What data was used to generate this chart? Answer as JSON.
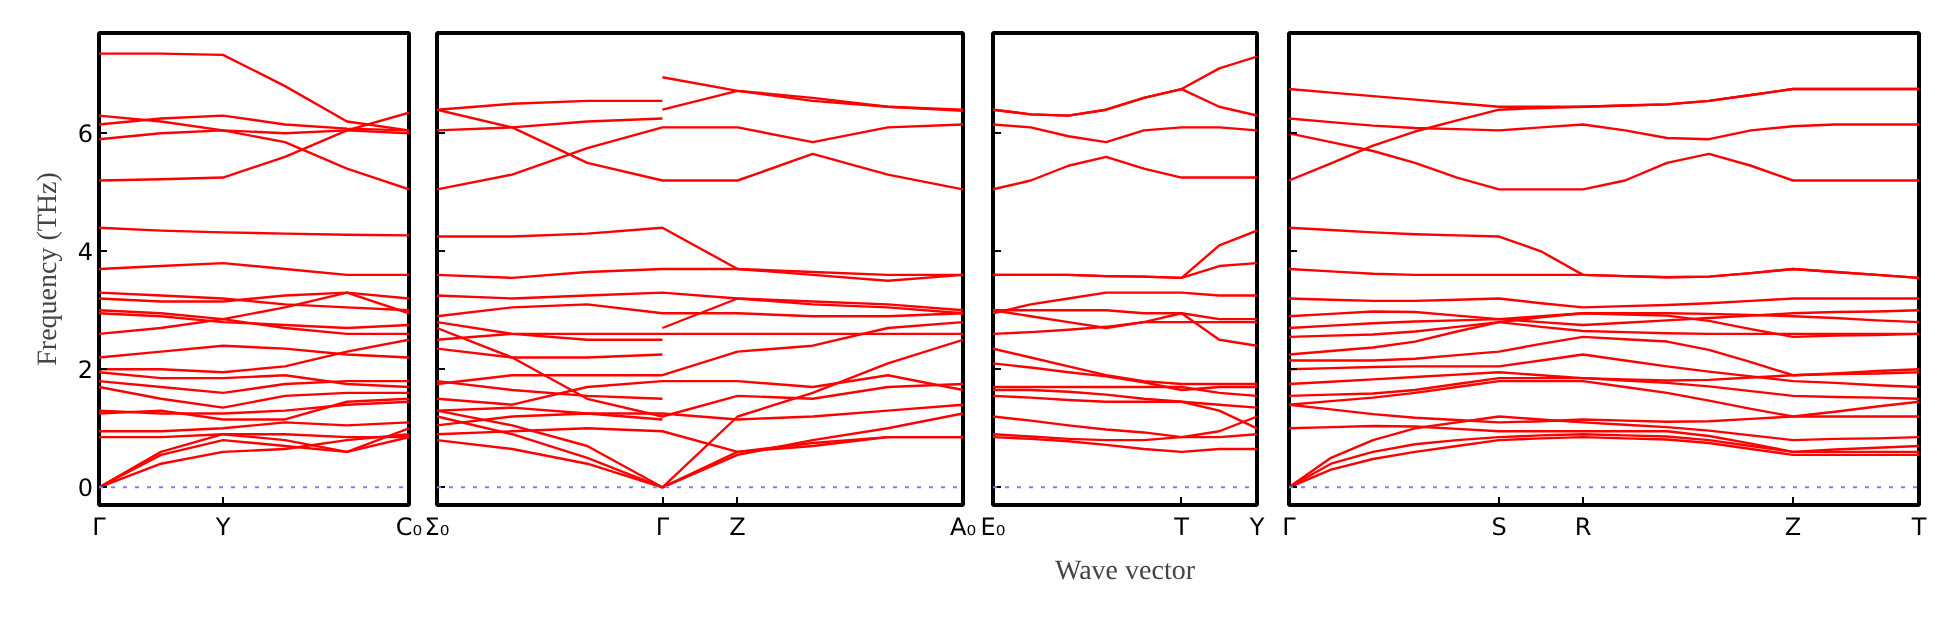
{
  "chart_data": [
    {
      "type": "line",
      "ylabel": "Frequency (THz)",
      "ylim": [
        -0.3,
        7.7
      ],
      "yticks": [
        0,
        2,
        4,
        6
      ],
      "categories": [
        "Γ",
        null,
        "Y",
        null,
        null,
        "C₀"
      ],
      "ref_lines": [
        {
          "axis": "y",
          "value": 0,
          "color": "#7f7fff",
          "line_style": "dotted"
        }
      ],
      "series": [
        {
          "color": "#ff0000",
          "values": [
            7.35,
            7.35,
            7.33,
            6.8,
            6.2,
            6.05
          ]
        },
        {
          "color": "#ff0000",
          "values": [
            6.3,
            6.2,
            6.05,
            5.85,
            5.4,
            5.05
          ]
        },
        {
          "color": "#ff0000",
          "values": [
            6.15,
            6.25,
            6.3,
            6.15,
            6.08,
            6.05
          ]
        },
        {
          "color": "#ff0000",
          "values": [
            5.9,
            6.0,
            6.05,
            6.0,
            6.05,
            6.0
          ]
        },
        {
          "color": "#ff0000",
          "values": [
            5.2,
            5.22,
            5.25,
            5.6,
            6.05,
            6.35
          ]
        },
        {
          "color": "#ff0000",
          "values": [
            4.4,
            4.35,
            4.32,
            4.3,
            4.28,
            4.27
          ]
        },
        {
          "color": "#ff0000",
          "values": [
            3.7,
            3.75,
            3.8,
            3.7,
            3.6,
            3.6
          ]
        },
        {
          "color": "#ff0000",
          "values": [
            3.3,
            3.25,
            3.2,
            3.1,
            3.05,
            3.0
          ]
        },
        {
          "color": "#ff0000",
          "values": [
            3.2,
            3.15,
            3.15,
            3.25,
            3.3,
            3.2
          ]
        },
        {
          "color": "#ff0000",
          "values": [
            3.0,
            2.95,
            2.85,
            3.05,
            3.3,
            2.95
          ]
        },
        {
          "color": "#ff0000",
          "values": [
            2.95,
            2.9,
            2.8,
            2.75,
            2.7,
            2.75
          ]
        },
        {
          "color": "#ff0000",
          "values": [
            2.6,
            2.7,
            2.85,
            2.7,
            2.6,
            2.6
          ]
        },
        {
          "color": "#ff0000",
          "values": [
            2.2,
            2.3,
            2.4,
            2.35,
            2.25,
            2.2
          ]
        },
        {
          "color": "#ff0000",
          "values": [
            2.0,
            2.0,
            1.95,
            2.05,
            2.3,
            2.5
          ]
        },
        {
          "color": "#ff0000",
          "values": [
            1.95,
            1.85,
            1.85,
            1.9,
            1.75,
            1.7
          ]
        },
        {
          "color": "#ff0000",
          "values": [
            1.8,
            1.7,
            1.6,
            1.75,
            1.8,
            1.8
          ]
        },
        {
          "color": "#ff0000",
          "values": [
            1.7,
            1.5,
            1.35,
            1.55,
            1.6,
            1.6
          ]
        },
        {
          "color": "#ff0000",
          "values": [
            1.3,
            1.25,
            1.25,
            1.3,
            1.4,
            1.45
          ]
        },
        {
          "color": "#ff0000",
          "values": [
            1.25,
            1.3,
            1.15,
            1.15,
            1.45,
            1.5
          ]
        },
        {
          "color": "#ff0000",
          "values": [
            0.95,
            0.95,
            1.0,
            1.1,
            1.05,
            1.1
          ]
        },
        {
          "color": "#ff0000",
          "values": [
            0.85,
            0.85,
            0.9,
            0.9,
            0.85,
            0.85
          ]
        },
        {
          "color": "#ff0000",
          "values": [
            0,
            0.6,
            0.9,
            0.8,
            0.6,
            0.85
          ]
        },
        {
          "color": "#ff0000",
          "values": [
            0,
            0.55,
            0.8,
            0.7,
            0.6,
            1.0
          ]
        },
        {
          "color": "#ff0000",
          "values": [
            0,
            0.4,
            0.6,
            0.65,
            0.8,
            0.9
          ]
        }
      ]
    },
    {
      "type": "line",
      "tick_labels": "x",
      "ylim": [
        -0.3,
        7.7
      ],
      "yticks": [
        0,
        2,
        4,
        6
      ],
      "categories": [
        "Σ₀",
        null,
        null,
        "Γ",
        "Z",
        null,
        null,
        "A₀"
      ],
      "ref_lines": [
        {
          "axis": "y",
          "value": 0,
          "color": "#7f7fff",
          "line_style": "dotted"
        }
      ],
      "series": [
        {
          "color": "#ff0000",
          "values": [
            6.4,
            6.5,
            6.55,
            6.55,
            null,
            null,
            null,
            null
          ]
        },
        {
          "color": "#ff0000",
          "values": [
            6.05,
            6.1,
            6.2,
            6.25,
            null,
            null,
            null,
            null
          ]
        },
        {
          "color": "#ff0000",
          "values": [
            6.4,
            6.1,
            5.5,
            5.2,
            5.2,
            5.65,
            5.3,
            5.05
          ]
        },
        {
          "color": "#ff0000",
          "values": [
            5.05,
            5.3,
            5.75,
            6.1,
            6.1,
            5.85,
            6.1,
            6.15
          ]
        },
        {
          "color": "#ff0000",
          "values": [
            null,
            null,
            null,
            6.95,
            6.72,
            6.6,
            6.45,
            6.38
          ]
        },
        {
          "color": "#ff0000",
          "values": [
            null,
            null,
            null,
            6.4,
            6.72,
            6.55,
            6.45,
            6.4
          ]
        },
        {
          "color": "#ff0000",
          "values": [
            4.25,
            4.25,
            4.3,
            4.4,
            3.7,
            3.6,
            3.5,
            3.6
          ]
        },
        {
          "color": "#ff0000",
          "values": [
            3.6,
            3.55,
            3.65,
            3.7,
            3.7,
            3.65,
            3.6,
            3.6
          ]
        },
        {
          "color": "#ff0000",
          "values": [
            3.25,
            3.2,
            3.25,
            3.3,
            3.2,
            3.15,
            3.1,
            3.0
          ]
        },
        {
          "color": "#ff0000",
          "values": [
            2.9,
            3.05,
            3.1,
            2.95,
            2.95,
            2.9,
            2.9,
            2.95
          ]
        },
        {
          "color": "#ff0000",
          "values": [
            2.8,
            2.6,
            2.5,
            2.5,
            null,
            null,
            null,
            null
          ]
        },
        {
          "color": "#ff0000",
          "values": [
            null,
            null,
            null,
            2.7,
            3.2,
            3.1,
            3.05,
            2.95
          ]
        },
        {
          "color": "#ff0000",
          "values": [
            2.5,
            2.6,
            2.6,
            2.6,
            2.6,
            2.6,
            2.6,
            2.6
          ]
        },
        {
          "color": "#ff0000",
          "values": [
            2.35,
            2.2,
            2.2,
            2.25,
            null,
            null,
            null,
            null
          ]
        },
        {
          "color": "#ff0000",
          "values": [
            2.7,
            2.2,
            1.5,
            1.2,
            1.55,
            1.5,
            1.7,
            1.75
          ]
        },
        {
          "color": "#ff0000",
          "values": [
            1.75,
            1.9,
            1.9,
            1.9,
            2.3,
            2.4,
            2.7,
            2.8
          ]
        },
        {
          "color": "#ff0000",
          "values": [
            1.8,
            1.65,
            1.55,
            1.5,
            null,
            null,
            null,
            null
          ]
        },
        {
          "color": "#ff0000",
          "values": [
            1.5,
            1.4,
            1.7,
            1.8,
            1.8,
            1.7,
            1.9,
            1.65
          ]
        },
        {
          "color": "#ff0000",
          "values": [
            1.3,
            1.35,
            1.25,
            1.25,
            1.15,
            1.2,
            1.3,
            1.4
          ]
        },
        {
          "color": "#ff0000",
          "values": [
            1.05,
            1.2,
            1.25,
            1.15,
            null,
            null,
            null,
            null
          ]
        },
        {
          "color": "#ff0000",
          "values": [
            0.9,
            0.95,
            1.0,
            0.95,
            0.6,
            0.7,
            0.85,
            0.85
          ]
        },
        {
          "color": "#ff0000",
          "values": [
            1.3,
            1.05,
            0.7,
            0,
            1.2,
            1.6,
            2.1,
            2.5
          ]
        },
        {
          "color": "#ff0000",
          "values": [
            1.2,
            0.9,
            0.5,
            0,
            0.55,
            0.8,
            1.0,
            1.25
          ]
        },
        {
          "color": "#ff0000",
          "values": [
            0.8,
            0.65,
            0.4,
            0,
            0.6,
            0.75,
            0.85,
            0.85
          ]
        }
      ]
    },
    {
      "type": "line",
      "tick_labels": "x",
      "xlabel": "Wave vector",
      "ylim": [
        -0.3,
        7.7
      ],
      "yticks": [
        0,
        2,
        4,
        6
      ],
      "categories": [
        "E₀",
        null,
        null,
        null,
        null,
        "T",
        null,
        "Y"
      ],
      "ref_lines": [
        {
          "axis": "y",
          "value": 0,
          "color": "#7f7fff",
          "line_style": "dotted"
        }
      ],
      "series": [
        {
          "color": "#ff0000",
          "values": [
            6.4,
            6.32,
            6.3,
            6.4,
            6.6,
            6.75,
            7.1,
            7.3
          ]
        },
        {
          "color": "#ff0000",
          "values": [
            6.4,
            6.32,
            6.3,
            6.4,
            6.6,
            6.75,
            6.45,
            6.3
          ]
        },
        {
          "color": "#ff0000",
          "values": [
            6.15,
            6.1,
            5.95,
            5.85,
            6.05,
            6.1,
            6.1,
            6.05
          ]
        },
        {
          "color": "#ff0000",
          "values": [
            5.05,
            5.2,
            5.45,
            5.6,
            5.4,
            5.25,
            5.25,
            5.25
          ]
        },
        {
          "color": "#ff0000",
          "values": [
            3.6,
            3.6,
            3.6,
            3.58,
            3.57,
            3.55,
            4.1,
            4.35
          ]
        },
        {
          "color": "#ff0000",
          "values": [
            3.6,
            3.6,
            3.6,
            3.58,
            3.57,
            3.55,
            3.75,
            3.8
          ]
        },
        {
          "color": "#ff0000",
          "values": [
            2.95,
            3.1,
            3.2,
            3.3,
            3.3,
            3.3,
            3.25,
            3.25
          ]
        },
        {
          "color": "#ff0000",
          "values": [
            3.0,
            3.0,
            3.0,
            3.0,
            2.95,
            2.95,
            2.85,
            2.85
          ]
        },
        {
          "color": "#ff0000",
          "values": [
            3.0,
            2.9,
            2.8,
            2.7,
            2.8,
            2.95,
            2.5,
            2.4
          ]
        },
        {
          "color": "#ff0000",
          "values": [
            2.6,
            2.63,
            2.67,
            2.72,
            2.8,
            2.8,
            2.8,
            2.8
          ]
        },
        {
          "color": "#ff0000",
          "values": [
            2.35,
            2.2,
            2.05,
            1.9,
            1.8,
            1.75,
            1.75,
            1.75
          ]
        },
        {
          "color": "#ff0000",
          "values": [
            2.1,
            2.03,
            1.95,
            1.88,
            1.78,
            1.65,
            1.7,
            1.7
          ]
        },
        {
          "color": "#ff0000",
          "values": [
            1.7,
            1.7,
            1.7,
            1.7,
            1.7,
            1.7,
            1.6,
            1.55
          ]
        },
        {
          "color": "#ff0000",
          "values": [
            1.65,
            1.65,
            1.62,
            1.57,
            1.5,
            1.45,
            1.4,
            1.35
          ]
        },
        {
          "color": "#ff0000",
          "values": [
            1.55,
            1.52,
            1.48,
            1.45,
            1.45,
            1.45,
            1.3,
            1.0
          ]
        },
        {
          "color": "#ff0000",
          "values": [
            1.2,
            1.13,
            1.05,
            0.98,
            0.93,
            0.85,
            0.95,
            1.2
          ]
        },
        {
          "color": "#ff0000",
          "values": [
            0.9,
            0.86,
            0.82,
            0.8,
            0.8,
            0.85,
            0.85,
            0.9
          ]
        },
        {
          "color": "#ff0000",
          "values": [
            0.85,
            0.82,
            0.78,
            0.72,
            0.65,
            0.6,
            0.65,
            0.65
          ]
        }
      ]
    },
    {
      "type": "line",
      "tick_labels": "x",
      "ylim": [
        -0.3,
        7.7
      ],
      "yticks": [
        0,
        2,
        4,
        6
      ],
      "categories": [
        "Γ",
        null,
        null,
        null,
        null,
        "S",
        null,
        "R",
        null,
        null,
        null,
        null,
        "Z",
        null,
        null,
        "T"
      ],
      "ref_lines": [
        {
          "axis": "y",
          "value": 0,
          "color": "#7f7fff",
          "line_style": "dotted"
        }
      ],
      "series": [
        {
          "color": "#ff0000",
          "values": [
            6.75,
            6.69,
            6.63,
            6.57,
            6.51,
            6.45,
            6.45,
            6.45,
            6.47,
            6.49,
            6.55,
            6.65,
            6.75,
            6.75,
            6.75,
            6.75
          ]
        },
        {
          "color": "#ff0000",
          "values": [
            5.2,
            5.49,
            5.79,
            6.03,
            6.22,
            6.4,
            6.43,
            6.45,
            6.47,
            6.49,
            6.55,
            6.65,
            6.75,
            6.75,
            6.75,
            6.75
          ]
        },
        {
          "color": "#ff0000",
          "values": [
            6.25,
            6.19,
            6.13,
            6.09,
            6.07,
            6.05,
            6.1,
            6.15,
            6.05,
            5.92,
            5.9,
            6.05,
            6.12,
            6.15,
            6.15,
            6.15
          ]
        },
        {
          "color": "#ff0000",
          "values": [
            6.0,
            5.85,
            5.7,
            5.5,
            5.25,
            5.05,
            5.05,
            5.05,
            5.2,
            5.5,
            5.65,
            5.45,
            5.2,
            5.2,
            5.2,
            5.2
          ]
        },
        {
          "color": "#ff0000",
          "values": [
            4.4,
            4.36,
            4.32,
            4.29,
            4.27,
            4.25,
            4.0,
            3.6,
            3.58,
            3.56,
            3.57,
            3.63,
            3.7,
            3.65,
            3.6,
            3.55
          ]
        },
        {
          "color": "#ff0000",
          "values": [
            3.7,
            3.66,
            3.62,
            3.6,
            3.6,
            3.6,
            3.6,
            3.6,
            3.58,
            3.56,
            3.57,
            3.63,
            3.7,
            3.65,
            3.6,
            3.55
          ]
        },
        {
          "color": "#ff0000",
          "values": [
            3.2,
            3.18,
            3.16,
            3.16,
            3.18,
            3.2,
            3.12,
            3.05,
            3.07,
            3.09,
            3.12,
            3.16,
            3.2,
            3.2,
            3.2,
            3.2
          ]
        },
        {
          "color": "#ff0000",
          "values": [
            2.9,
            2.94,
            2.98,
            2.97,
            2.91,
            2.85,
            2.9,
            2.95,
            2.95,
            2.95,
            2.94,
            2.92,
            2.9,
            2.87,
            2.83,
            2.8
          ]
        },
        {
          "color": "#ff0000",
          "values": [
            2.7,
            2.74,
            2.78,
            2.81,
            2.83,
            2.85,
            2.8,
            2.75,
            2.79,
            2.83,
            2.87,
            2.91,
            2.95,
            2.97,
            2.98,
            3.0
          ]
        },
        {
          "color": "#ff0000",
          "values": [
            2.55,
            2.57,
            2.59,
            2.64,
            2.72,
            2.8,
            2.72,
            2.65,
            2.63,
            2.61,
            2.6,
            2.6,
            2.6,
            2.6,
            2.6,
            2.6
          ]
        },
        {
          "color": "#ff0000",
          "values": [
            2.25,
            2.31,
            2.37,
            2.47,
            2.64,
            2.8,
            2.88,
            2.95,
            2.93,
            2.91,
            2.82,
            2.68,
            2.55,
            2.57,
            2.58,
            2.6
          ]
        },
        {
          "color": "#ff0000",
          "values": [
            2.15,
            2.15,
            2.15,
            2.18,
            2.24,
            2.3,
            2.43,
            2.55,
            2.51,
            2.47,
            2.33,
            2.12,
            1.9,
            1.93,
            1.97,
            2.0
          ]
        },
        {
          "color": "#ff0000",
          "values": [
            2.0,
            2.02,
            2.04,
            2.05,
            2.05,
            2.05,
            2.15,
            2.25,
            2.15,
            2.05,
            1.96,
            1.88,
            1.8,
            1.77,
            1.73,
            1.7
          ]
        },
        {
          "color": "#ff0000",
          "values": [
            1.75,
            1.79,
            1.83,
            1.87,
            1.91,
            1.95,
            1.9,
            1.85,
            1.81,
            1.77,
            1.71,
            1.63,
            1.55,
            1.53,
            1.52,
            1.5
          ]
        },
        {
          "color": "#ff0000",
          "values": [
            1.55,
            1.57,
            1.59,
            1.65,
            1.75,
            1.85,
            1.85,
            1.85,
            1.83,
            1.81,
            1.82,
            1.86,
            1.9,
            1.92,
            1.93,
            1.95
          ]
        },
        {
          "color": "#ff0000",
          "values": [
            1.4,
            1.46,
            1.52,
            1.6,
            1.7,
            1.8,
            1.8,
            1.8,
            1.7,
            1.6,
            1.47,
            1.33,
            1.2,
            1.2,
            1.2,
            1.2
          ]
        },
        {
          "color": "#ff0000",
          "values": [
            1.4,
            1.32,
            1.24,
            1.18,
            1.14,
            1.1,
            1.12,
            1.15,
            1.13,
            1.11,
            1.12,
            1.16,
            1.2,
            1.28,
            1.37,
            1.45
          ]
        },
        {
          "color": "#ff0000",
          "values": [
            1.0,
            1.02,
            1.04,
            1.03,
            0.99,
            0.95,
            0.95,
            0.95,
            0.95,
            0.95,
            0.87,
            0.74,
            0.6,
            0.6,
            0.6,
            0.6
          ]
        },
        {
          "color": "#ff0000",
          "values": [
            0,
            0.5,
            0.8,
            1.0,
            1.1,
            1.2,
            1.15,
            1.1,
            1.06,
            1.02,
            0.96,
            0.88,
            0.8,
            0.82,
            0.83,
            0.85
          ]
        },
        {
          "color": "#ff0000",
          "values": [
            0,
            0.4,
            0.6,
            0.73,
            0.8,
            0.85,
            0.88,
            0.9,
            0.88,
            0.86,
            0.8,
            0.7,
            0.6,
            0.64,
            0.67,
            0.7
          ]
        },
        {
          "color": "#ff0000",
          "values": [
            0,
            0.3,
            0.48,
            0.6,
            0.7,
            0.8,
            0.83,
            0.85,
            0.83,
            0.81,
            0.75,
            0.65,
            0.55,
            0.55,
            0.55,
            0.55
          ]
        }
      ]
    }
  ]
}
